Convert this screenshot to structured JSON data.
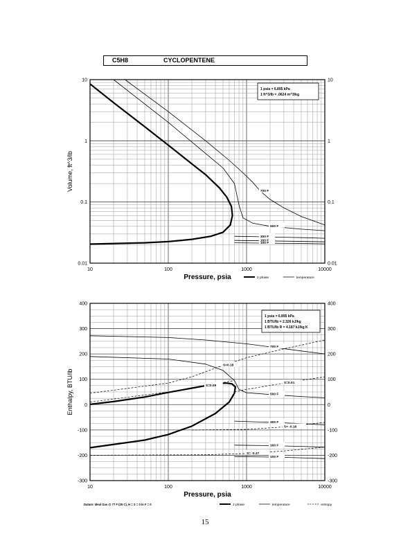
{
  "header": {
    "formula": "C5H8",
    "compound": "CYCLOPENTENE"
  },
  "page_number": "15",
  "chart_data": [
    {
      "type": "line",
      "xlabel": "Pressure, psia",
      "ylabel": "Volume, ft^3/lb",
      "xscale": "log",
      "yscale": "log",
      "xlim": [
        10,
        10000
      ],
      "ylim": [
        0.01,
        10
      ],
      "x_ticks": [
        "10",
        "100",
        "1000",
        "10000"
      ],
      "y_ticks": [
        "0.01",
        "0.1",
        "1",
        "10"
      ],
      "y_ticks_right": [
        "0.01",
        "0.1",
        "1",
        "10"
      ],
      "grid": true,
      "conversion_box": [
        "1 psia = 6.895 kPa",
        "1 ft^3/lb = .0624 m^3/kg"
      ],
      "legend": [
        {
          "name": "2 phase",
          "style": "thick"
        },
        {
          "name": "temperature",
          "style": "thin"
        }
      ],
      "series": [
        {
          "name": "2 phase",
          "style": "thick",
          "points": [
            [
              10,
              0.0205
            ],
            [
              50,
              0.0215
            ],
            [
              100,
              0.0225
            ],
            [
              200,
              0.0245
            ],
            [
              350,
              0.0275
            ],
            [
              500,
              0.032
            ],
            [
              620,
              0.042
            ],
            [
              660,
              0.06
            ],
            [
              640,
              0.085
            ],
            [
              560,
              0.12
            ],
            [
              450,
              0.17
            ],
            [
              300,
              0.28
            ],
            [
              200,
              0.42
            ],
            [
              100,
              0.85
            ],
            [
              50,
              1.7
            ],
            [
              20,
              4.2
            ],
            [
              10,
              8.5
            ]
          ]
        },
        {
          "name": "700 F",
          "label": "700 F",
          "style": "thin",
          "points": [
            [
              28,
              10
            ],
            [
              100,
              3.0
            ],
            [
              300,
              1.0
            ],
            [
              600,
              0.48
            ],
            [
              900,
              0.3
            ],
            [
              1200,
              0.21
            ],
            [
              1500,
              0.15
            ],
            [
              2000,
              0.11
            ],
            [
              3000,
              0.08
            ],
            [
              5000,
              0.058
            ],
            [
              10000,
              0.042
            ]
          ]
        },
        {
          "name": "500 F",
          "label": "500 F",
          "style": "thin",
          "points": [
            [
              20,
              10
            ],
            [
              100,
              2.0
            ],
            [
              300,
              0.62
            ],
            [
              500,
              0.36
            ],
            [
              700,
              0.2
            ],
            [
              800,
              0.09
            ],
            [
              900,
              0.055
            ],
            [
              1200,
              0.045
            ],
            [
              2000,
              0.04
            ],
            [
              5000,
              0.036
            ],
            [
              10000,
              0.034
            ]
          ]
        },
        {
          "name": "300 F",
          "label": "300 F",
          "style": "thin",
          "points": [
            [
              700,
              0.0275
            ],
            [
              1500,
              0.027
            ],
            [
              3000,
              0.0265
            ],
            [
              6000,
              0.026
            ],
            [
              10000,
              0.0255
            ]
          ]
        },
        {
          "name": "160 F",
          "label": "160 F",
          "style": "thin",
          "points": [
            [
              700,
              0.0235
            ],
            [
              1500,
              0.0232
            ],
            [
              3000,
              0.0229
            ],
            [
              6000,
              0.0226
            ],
            [
              10000,
              0.0223
            ]
          ]
        },
        {
          "name": "100 F",
          "label": "100 F",
          "style": "thin",
          "points": [
            [
              700,
              0.0215
            ],
            [
              1500,
              0.0213
            ],
            [
              3000,
              0.0211
            ],
            [
              6000,
              0.0209
            ],
            [
              10000,
              0.0207
            ]
          ]
        }
      ]
    },
    {
      "type": "line",
      "xlabel": "Pressure, psia",
      "ylabel": "Enthalpy, BTU/lb",
      "xscale": "log",
      "yscale": "linear",
      "xlim": [
        10,
        10000
      ],
      "ylim": [
        -300,
        400
      ],
      "x_ticks": [
        "10",
        "100",
        "1000",
        "10000"
      ],
      "y_ticks": [
        "-300",
        "-200",
        "-100",
        "0",
        "100",
        "200",
        "300",
        "400"
      ],
      "y_ticks_right": [
        "-300",
        "-200",
        "-100",
        "0",
        "100",
        "200",
        "300",
        "400"
      ],
      "grid": true,
      "datum_note": "Datum: Ideal Gas @ 77 F (25 C), H = S = 0 In F = 0",
      "conversion_box": [
        "1 psia = 6.895 kPa",
        "1 BTU/lb = 2.326 kJ/kg",
        "1 BTU/lb R = 4.187 kJ/kg K"
      ],
      "legend": [
        {
          "name": "2 phase",
          "style": "thick"
        },
        {
          "name": "temperature",
          "style": "thin"
        },
        {
          "name": "entropy",
          "style": "dashed"
        }
      ],
      "series": [
        {
          "name": "2 phase",
          "style": "thick",
          "points": [
            [
              10,
              -170
            ],
            [
              50,
              -140
            ],
            [
              100,
              -118
            ],
            [
              200,
              -85
            ],
            [
              400,
              -35
            ],
            [
              600,
              10
            ],
            [
              700,
              45
            ],
            [
              720,
              70
            ],
            [
              650,
              82
            ],
            [
              550,
              85
            ],
            [
              400,
              82
            ],
            [
              200,
              65
            ],
            [
              100,
              48
            ],
            [
              50,
              30
            ],
            [
              20,
              12
            ],
            [
              10,
              1
            ]
          ]
        },
        {
          "name": "700 F",
          "label": "700 F",
          "style": "thin",
          "points": [
            [
              10,
              272
            ],
            [
              100,
              265
            ],
            [
              300,
              255
            ],
            [
              1000,
              240
            ],
            [
              2000,
              228
            ],
            [
              5000,
              212
            ],
            [
              10000,
              200
            ]
          ]
        },
        {
          "name": "500 F",
          "label": "500 F",
          "style": "thin",
          "points": [
            [
              10,
              190
            ],
            [
              100,
              180
            ],
            [
              300,
              160
            ],
            [
              500,
              135
            ],
            [
              700,
              95
            ],
            [
              800,
              60
            ],
            [
              1000,
              47
            ],
            [
              2000,
              40
            ],
            [
              5000,
              32
            ],
            [
              10000,
              27
            ]
          ]
        },
        {
          "name": "300 F",
          "label": "300 F",
          "style": "thin",
          "points": [
            [
              700,
              -65
            ],
            [
              2000,
              -70
            ],
            [
              5000,
              -75
            ],
            [
              10000,
              -80
            ]
          ]
        },
        {
          "name": "160 F",
          "label": "160 F",
          "style": "thin",
          "points": [
            [
              700,
              -160
            ],
            [
              2000,
              -162
            ],
            [
              5000,
              -165
            ],
            [
              10000,
              -168
            ]
          ]
        },
        {
          "name": "100 F",
          "label": "100 F",
          "style": "thin",
          "points": [
            [
              700,
              -205
            ],
            [
              2000,
              -207
            ],
            [
              5000,
              -210
            ],
            [
              10000,
              -213
            ]
          ]
        },
        {
          "name": "S=0.18",
          "label": "S=0.18",
          "style": "dashed",
          "points": [
            [
              10,
              45
            ],
            [
              100,
              85
            ],
            [
              200,
              110
            ],
            [
              500,
              155
            ],
            [
              1000,
              185
            ],
            [
              3000,
              220
            ],
            [
              10000,
              255
            ]
          ]
        },
        {
          "name": "S=0.09",
          "label": "S=0.09",
          "style": "dashed",
          "points": [
            [
              10,
              10
            ],
            [
              100,
              50
            ],
            [
              300,
              75
            ],
            [
              700,
              95
            ]
          ]
        },
        {
          "name": "S=0.01",
          "label": "S=0.01",
          "style": "dashed",
          "points": [
            [
              700,
              50
            ],
            [
              1000,
              60
            ],
            [
              3000,
              85
            ],
            [
              10000,
              110
            ]
          ]
        },
        {
          "name": "S=-0.18",
          "label": "S= -0.18",
          "style": "dashed",
          "points": [
            [
              200,
              -100
            ],
            [
              1000,
              -98
            ],
            [
              3000,
              -88
            ],
            [
              10000,
              -70
            ]
          ]
        },
        {
          "name": "S=-0.37",
          "label": "S= -0.37",
          "style": "dashed",
          "points": [
            [
              10,
              -200
            ],
            [
              300,
              -198
            ],
            [
              1000,
              -193
            ],
            [
              3000,
              -183
            ],
            [
              10000,
              -168
            ]
          ]
        }
      ]
    }
  ]
}
